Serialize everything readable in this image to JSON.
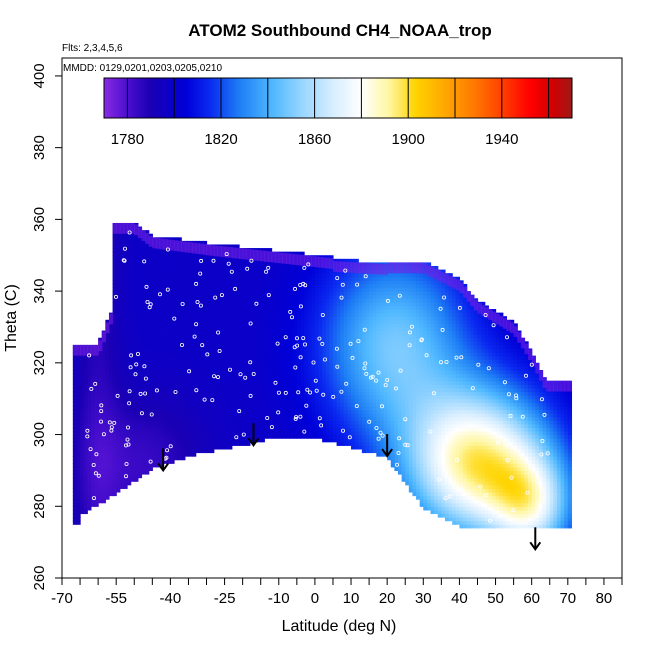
{
  "chart_data": {
    "type": "heatmap",
    "title": "ATOM2 Southbound CH4_NOAA_trop",
    "flights_note": "Flts: 2,3,4,5,6",
    "dates_note": "MMDD: 0129,0201,0203,0205,0210",
    "xlabel": "Latitude (deg N)",
    "ylabel": "Theta (C)",
    "xlim": [
      -70,
      85
    ],
    "ylim": [
      260,
      405
    ],
    "x_ticks": [
      -70,
      -65,
      -60,
      -55,
      -50,
      -45,
      -40,
      -35,
      -30,
      -25,
      -20,
      -15,
      -10,
      -5,
      0,
      5,
      10,
      15,
      20,
      25,
      30,
      35,
      40,
      45,
      50,
      55,
      60,
      65,
      70,
      75,
      80,
      85
    ],
    "x_tick_labels": [
      "-70",
      "-55",
      "-40",
      "-25",
      "-10",
      "0",
      "10",
      "20",
      "30",
      "40",
      "50",
      "60",
      "70",
      "80"
    ],
    "x_label_values": [
      -70,
      -55,
      -40,
      -25,
      -10,
      0,
      10,
      20,
      30,
      40,
      50,
      60,
      70,
      80
    ],
    "y_ticks": [
      260,
      280,
      300,
      320,
      340,
      360,
      380,
      400
    ],
    "y_tick_labels": [
      "260",
      "280",
      "300",
      "320",
      "340",
      "360",
      "380",
      "400"
    ],
    "colorbar": {
      "range": [
        1770,
        1970
      ],
      "tick_values": [
        1780,
        1820,
        1860,
        1900,
        1940
      ],
      "tick_labels": [
        "1780",
        "1820",
        "1860",
        "1900",
        "1940"
      ],
      "boundaries": [
        1780,
        1800,
        1820,
        1840,
        1860,
        1880,
        1900,
        1920,
        1940,
        1960
      ],
      "palette_stops": [
        {
          "value": 1770,
          "color": "#8a2be2"
        },
        {
          "value": 1780,
          "color": "#4b0fd0"
        },
        {
          "value": 1790,
          "color": "#1a00b4"
        },
        {
          "value": 1805,
          "color": "#0000d8"
        },
        {
          "value": 1815,
          "color": "#0a28f0"
        },
        {
          "value": 1828,
          "color": "#1e7ff5"
        },
        {
          "value": 1842,
          "color": "#4fb8ff"
        },
        {
          "value": 1855,
          "color": "#9ad6ff"
        },
        {
          "value": 1868,
          "color": "#d8eeff"
        },
        {
          "value": 1880,
          "color": "#ffffff"
        },
        {
          "value": 1892,
          "color": "#fff6a0"
        },
        {
          "value": 1903,
          "color": "#ffd400"
        },
        {
          "value": 1915,
          "color": "#ffaa00"
        },
        {
          "value": 1928,
          "color": "#ff7a00"
        },
        {
          "value": 1940,
          "color": "#ff4000"
        },
        {
          "value": 1952,
          "color": "#ff0000"
        },
        {
          "value": 1962,
          "color": "#d00000"
        },
        {
          "value": 1970,
          "color": "#a01818"
        }
      ]
    },
    "field_extent": {
      "lat_min": -67,
      "lat_max": 71,
      "theta_min": 274,
      "theta_max": 360
    },
    "arrows": [
      {
        "lat": -42,
        "theta": 290
      },
      {
        "lat": -17,
        "theta": 297
      },
      {
        "lat": 20,
        "theta": 294
      },
      {
        "lat": 61,
        "theta": 268
      }
    ]
  }
}
